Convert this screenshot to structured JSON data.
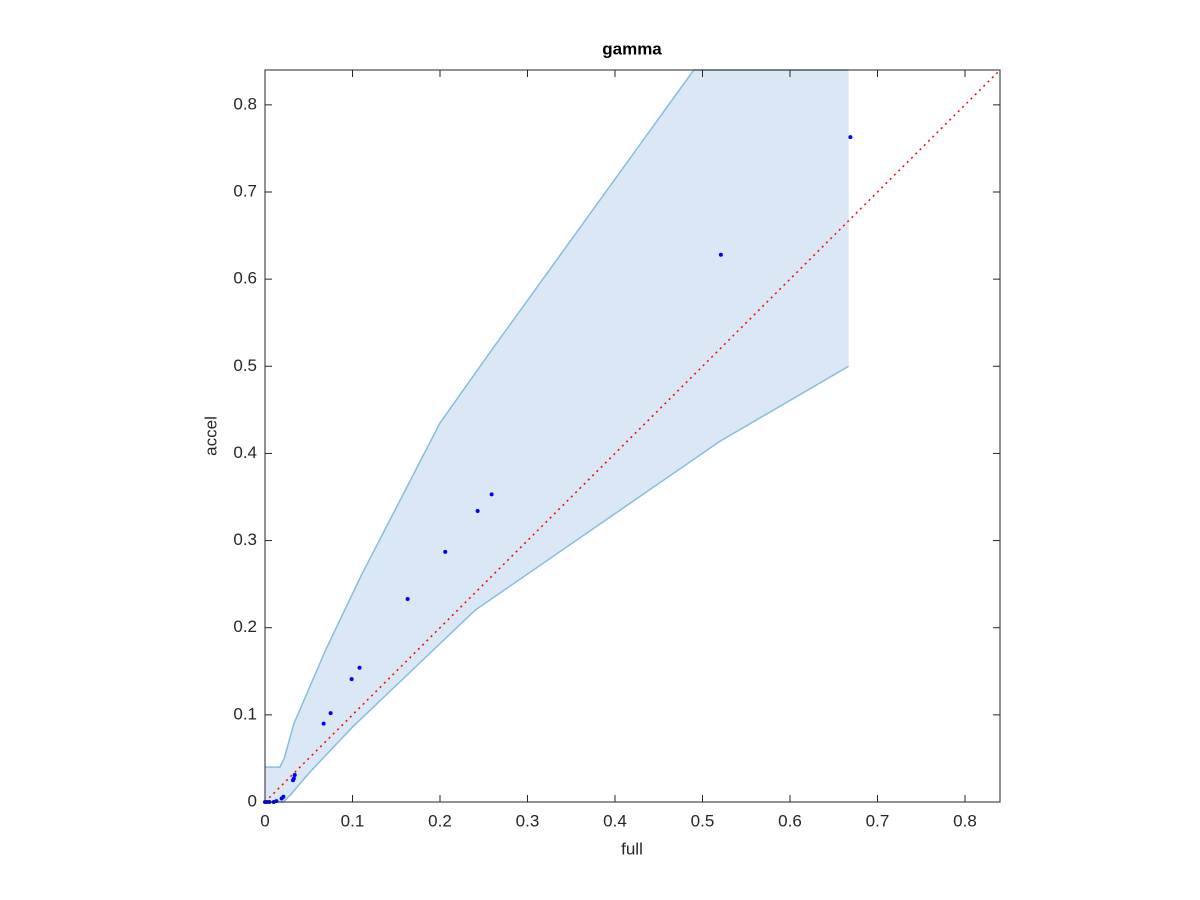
{
  "chart_data": {
    "type": "scatter",
    "title": "gamma",
    "xlabel": "full",
    "ylabel": "accel",
    "x": [
      0.669,
      0.521,
      0.259,
      0.243,
      0.206,
      0.163,
      0.108,
      0.099,
      0.075,
      0.067,
      0.034,
      0.033,
      0.032,
      0.021,
      0.019,
      0.013,
      0.01,
      0.005,
      0.002,
      0
    ],
    "values": [
      0.763,
      0.628,
      0.353,
      0.334,
      0.287,
      0.233,
      0.154,
      0.141,
      0.102,
      0.09,
      0.031,
      0.027,
      0.025,
      0.006,
      0.004,
      0.001,
      0,
      0,
      0,
      0
    ],
    "color": "#0000ff",
    "band": {
      "color": "#d9e8f4",
      "edge_color": "#86bde0",
      "upper": {
        "x": [
          0,
          0.017,
          0.022,
          0.033,
          0.07,
          0.11,
          0.2,
          0.26,
          0.49,
          0.667
        ],
        "y": [
          0.04,
          0.04,
          0.05,
          0.09,
          0.176,
          0.26,
          0.435,
          0.52,
          0.84,
          0.84
        ]
      },
      "lower": {
        "x": [
          0,
          0.021,
          0.029,
          0.051,
          0.1,
          0.24,
          0.52,
          0.667
        ],
        "y": [
          0,
          0,
          0.008,
          0.034,
          0.086,
          0.22,
          0.414,
          0.5
        ]
      }
    },
    "reference_line": {
      "x": [
        0,
        0.84
      ],
      "y": [
        0,
        0.84
      ],
      "color": "#ff0000",
      "style": "dotted"
    },
    "xlim": [
      0,
      0.84
    ],
    "ylim": [
      0,
      0.84
    ],
    "xticks": [
      0,
      0.1,
      0.2,
      0.3,
      0.4,
      0.5,
      0.6,
      0.7,
      0.8
    ],
    "yticks": [
      0,
      0.1,
      0.2,
      0.3,
      0.4,
      0.5,
      0.6,
      0.7,
      0.8
    ],
    "grid": false
  }
}
